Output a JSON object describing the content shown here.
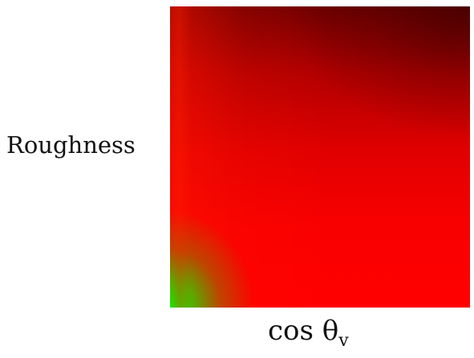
{
  "chart_data": {
    "type": "heatmap",
    "xlabel": "cos θ",
    "xlabel_subscript": "v",
    "ylabel": "Roughness",
    "colors": {
      "low": "#22e600",
      "mid": "#ff0000",
      "high": "#5a0000"
    }
  }
}
